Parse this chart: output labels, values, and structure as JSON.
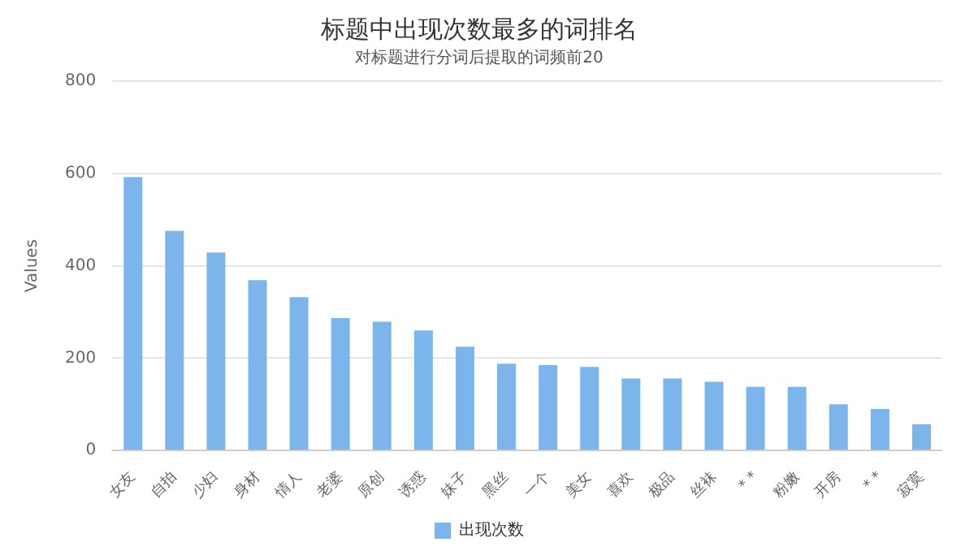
{
  "chart_data": {
    "type": "bar",
    "title": "标题中出现次数最多的词排名",
    "subtitle": "对标题进行分词后提取的词频前20",
    "ylabel": "Values",
    "categories": [
      "女友",
      "自拍",
      "少妇",
      "身材",
      "情人",
      "老婆",
      "原创",
      "诱惑",
      "妹子",
      "黑丝",
      "一个",
      "美女",
      "喜欢",
      "极品",
      "丝袜",
      "* *",
      "粉嫩",
      "开房",
      "* *",
      "寂寞"
    ],
    "series": [
      {
        "name": "出现次数",
        "color": "#7cb5ec",
        "values": [
          592,
          476,
          429,
          369,
          332,
          287,
          279,
          260,
          225,
          188,
          185,
          181,
          156,
          156,
          149,
          138,
          138,
          100,
          90,
          57
        ]
      }
    ],
    "ylim": [
      0,
      800
    ],
    "yticks": [
      0,
      200,
      400,
      600,
      800
    ],
    "grid": "y",
    "legend": "bottom"
  }
}
